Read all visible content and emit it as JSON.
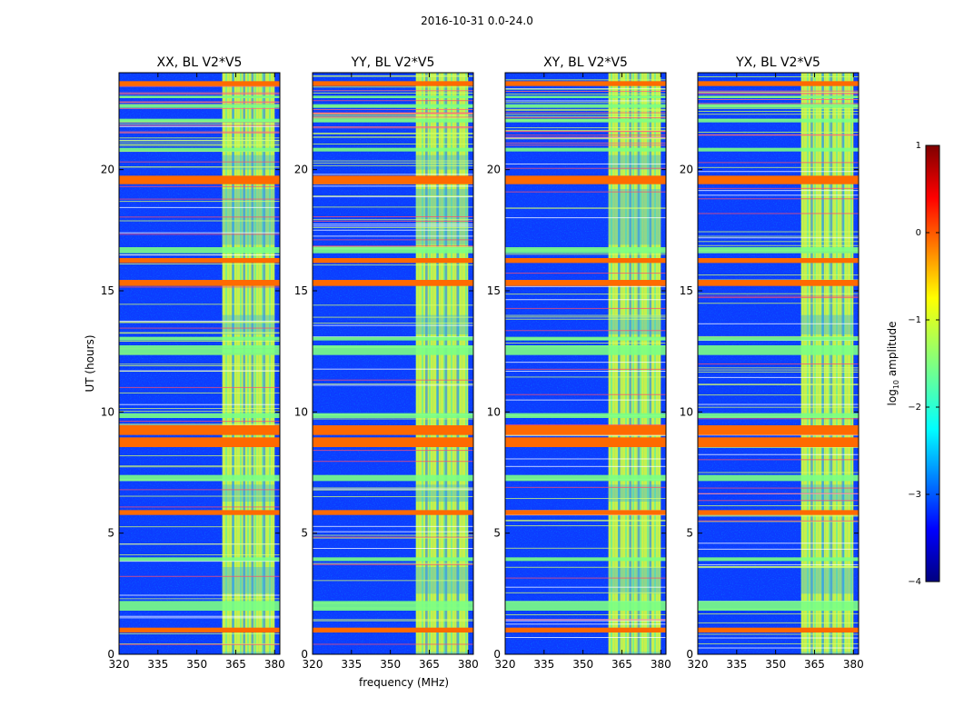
{
  "figure": {
    "suptitle": "2016-10-31 0.0-24.0"
  },
  "chart_data": [
    {
      "type": "heatmap",
      "title": "XX, BL V2*V5",
      "xlabel": "",
      "ylabel": "UT (hours)",
      "xlim": [
        320,
        382
      ],
      "ylim": [
        0,
        24
      ],
      "xticks": [
        320,
        335,
        350,
        365,
        380
      ],
      "yticks": [
        0,
        5,
        10,
        15,
        20
      ],
      "band_mhz": [
        359.8,
        380.0
      ]
    },
    {
      "type": "heatmap",
      "title": "YY, BL V2*V5",
      "xlabel": "frequency (MHz)",
      "ylabel": "",
      "xlim": [
        320,
        382
      ],
      "ylim": [
        0,
        24
      ],
      "xticks": [
        320,
        335,
        350,
        365,
        380
      ],
      "yticks": [
        0,
        5,
        10,
        15,
        20
      ],
      "band_mhz": [
        359.8,
        380.0
      ]
    },
    {
      "type": "heatmap",
      "title": "XY, BL V2*V5",
      "xlabel": "",
      "ylabel": "",
      "xlim": [
        320,
        382
      ],
      "ylim": [
        0,
        24
      ],
      "xticks": [
        320,
        335,
        350,
        365,
        380
      ],
      "yticks": [
        0,
        5,
        10,
        15,
        20
      ],
      "band_mhz": [
        359.8,
        380.0
      ]
    },
    {
      "type": "heatmap",
      "title": "YX, BL V2*V5",
      "xlabel": "",
      "ylabel": "",
      "xlim": [
        320,
        382
      ],
      "ylim": [
        0,
        24
      ],
      "xticks": [
        320,
        335,
        350,
        365,
        380
      ],
      "yticks": [
        0,
        5,
        10,
        15,
        20
      ],
      "band_mhz": [
        359.8,
        380.0
      ]
    }
  ],
  "colorbar": {
    "label_main": "log",
    "label_sub": "10",
    "label_tail": " amplitude",
    "range": [
      -4,
      1
    ],
    "ticks": [
      1,
      0,
      -1,
      -2,
      -3,
      -4
    ],
    "tick_labels": [
      "1",
      "0",
      "−1",
      "−2",
      "−3",
      "−4"
    ],
    "colormap": "jet"
  },
  "features": {
    "strong_rfi_hours": [
      [
        0.9,
        1.1
      ],
      [
        5.75,
        5.95
      ],
      [
        8.55,
        8.95
      ],
      [
        9.05,
        9.45
      ],
      [
        15.2,
        15.45
      ],
      [
        16.15,
        16.35
      ],
      [
        19.4,
        19.75
      ],
      [
        23.45,
        23.65
      ]
    ],
    "medium_rfi_hours": [
      [
        1.8,
        2.2
      ],
      [
        3.85,
        4.0
      ],
      [
        7.15,
        7.4
      ],
      [
        9.75,
        9.95
      ],
      [
        12.35,
        12.75
      ],
      [
        12.95,
        13.1
      ],
      [
        16.55,
        16.8
      ],
      [
        20.75,
        20.9
      ],
      [
        21.95,
        22.1
      ],
      [
        22.55,
        22.7
      ],
      [
        22.95,
        23.05
      ]
    ],
    "colors": {
      "strong": "#ff6a00",
      "medium": "#7bff84",
      "thin": "#d8ff6a",
      "band": "#b9ff50",
      "background": "#0c3cff"
    }
  }
}
